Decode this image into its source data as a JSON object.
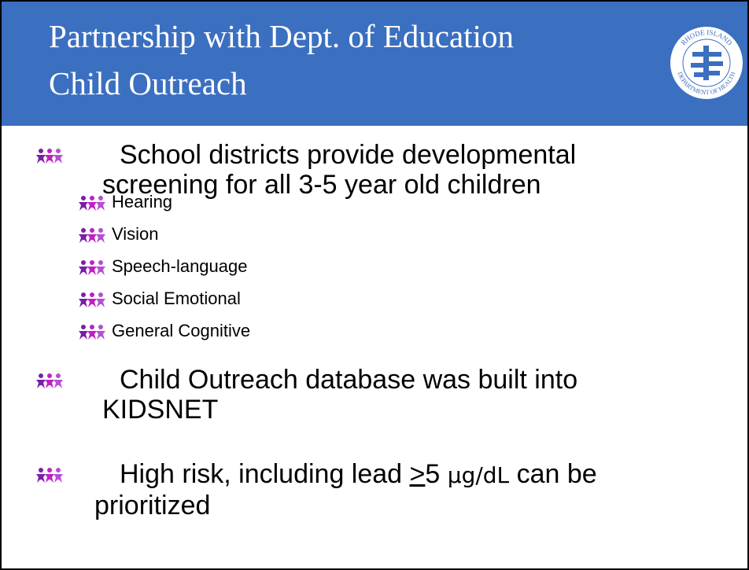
{
  "header": {
    "title": "Partnership with Dept. of Education Child Outreach",
    "logo": {
      "top_text": "RHODE ISLAND",
      "bottom_text": "DEPARTMENT OF HEALTH"
    }
  },
  "bullets": [
    {
      "text": "School districts provide developmental screening for all 3-5 year old children",
      "sub_bullets": [
        "Hearing",
        "Vision",
        "Speech-language",
        "Social Emotional",
        "General Cognitive"
      ]
    },
    {
      "text": "Child Outreach database was built into KIDSNET"
    },
    {
      "parts": [
        "High risk, including lead ",
        ">",
        "5 ",
        "μg/dL",
        " can be prioritized"
      ]
    }
  ]
}
